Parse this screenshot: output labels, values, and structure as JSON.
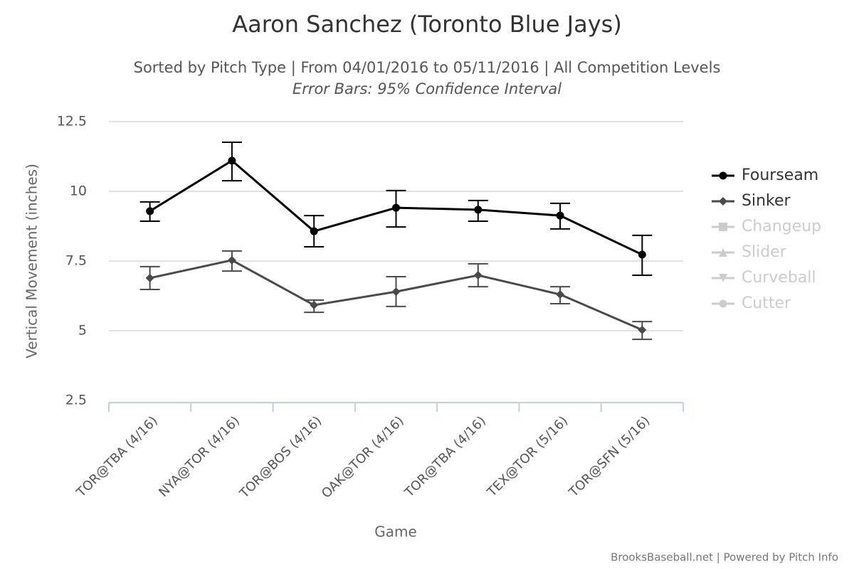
{
  "chart_data": {
    "type": "line",
    "title": "Aaron Sanchez (Toronto Blue Jays)",
    "subtitle": "Sorted by Pitch Type | From 04/01/2016 to 05/11/2016 | All Competition Levels",
    "annotation": "Error Bars: 95% Confidence Interval",
    "x_label": "Game",
    "y_label": "Vertical Movement (inches)",
    "credit": "BrooksBaseball.net | Powered by Pitch Info",
    "categories": [
      "TOR@TBA (4/16)",
      "NYA@TOR (4/16)",
      "TOR@BOS (4/16)",
      "OAK@TOR (4/16)",
      "TOR@TBA (4/16)",
      "TEX@TOR (5/16)",
      "TOR@SFN (5/16)"
    ],
    "ylim": [
      2.5,
      12.5
    ],
    "yticks": [
      2.5,
      5,
      7.5,
      10,
      12.5
    ],
    "grid": true,
    "legend": "right",
    "series": [
      {
        "name": "Fourseam",
        "color": "#000000",
        "marker": "circle",
        "visible": true,
        "values": [
          9.29,
          11.1,
          8.57,
          9.41,
          9.34,
          9.13,
          7.73
        ],
        "lower": [
          8.93,
          10.38,
          8.01,
          8.72,
          8.93,
          8.65,
          6.99
        ],
        "upper": [
          9.62,
          11.76,
          9.13,
          10.03,
          9.67,
          9.57,
          8.42
        ]
      },
      {
        "name": "Sinker",
        "color": "#4a4a4a",
        "marker": "diamond",
        "visible": true,
        "values": [
          6.89,
          7.53,
          5.92,
          6.4,
          6.99,
          6.3,
          5.03
        ],
        "lower": [
          6.48,
          7.14,
          5.66,
          5.87,
          6.58,
          5.97,
          4.69
        ],
        "upper": [
          7.3,
          7.86,
          6.1,
          6.94,
          7.4,
          6.58,
          5.33
        ]
      },
      {
        "name": "Changeup",
        "color": "#cccccc",
        "marker": "square",
        "visible": false
      },
      {
        "name": "Slider",
        "color": "#cccccc",
        "marker": "triangle",
        "visible": false
      },
      {
        "name": "Curveball",
        "color": "#cccccc",
        "marker": "triangle-down",
        "visible": false
      },
      {
        "name": "Cutter",
        "color": "#cccccc",
        "marker": "circle",
        "visible": false
      }
    ]
  }
}
